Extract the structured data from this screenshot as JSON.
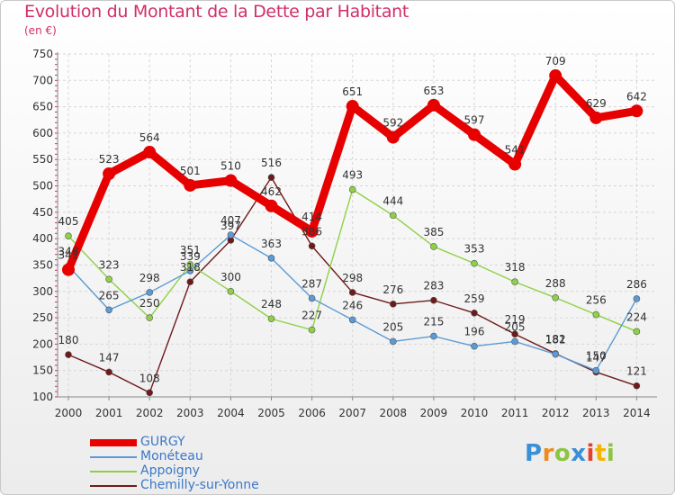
{
  "title": "Evolution du Montant de la Dette par Habitant",
  "unit": "(en €)",
  "logo": "Proxiti",
  "chart_data": {
    "type": "line",
    "x": [
      "2000",
      "2001",
      "2002",
      "2003",
      "2004",
      "2005",
      "2006",
      "2007",
      "2008",
      "2009",
      "2010",
      "2011",
      "2012",
      "2013",
      "2014"
    ],
    "ylim": [
      100,
      750
    ],
    "yticks": [
      100,
      150,
      200,
      250,
      300,
      350,
      400,
      450,
      500,
      550,
      600,
      650,
      700,
      750
    ],
    "grid": true,
    "legend_position": "bottom-left",
    "series": [
      {
        "name": "GURGY",
        "color": "#e60000",
        "values": [
          341,
          523,
          564,
          501,
          510,
          462,
          414,
          651,
          592,
          653,
          597,
          541,
          709,
          629,
          642
        ]
      },
      {
        "name": "Monéteau",
        "color": "#5b9bd5",
        "values": [
          348,
          265,
          298,
          339,
          407,
          363,
          287,
          246,
          205,
          215,
          196,
          205,
          181,
          150,
          286
        ]
      },
      {
        "name": "Appoigny",
        "color": "#8fd146",
        "values": [
          405,
          323,
          250,
          351,
          300,
          248,
          227,
          493,
          444,
          385,
          353,
          318,
          288,
          256,
          224
        ]
      },
      {
        "name": "Chemilly-sur-Yonne",
        "color": "#6e1a1a",
        "values": [
          180,
          147,
          108,
          318,
          397,
          516,
          386,
          298,
          276,
          283,
          259,
          219,
          182,
          147,
          121
        ]
      }
    ]
  }
}
